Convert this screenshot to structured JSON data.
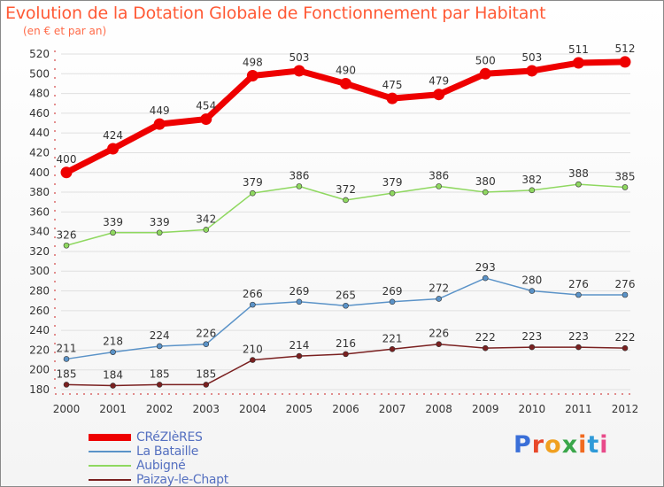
{
  "header": {
    "title": "Evolution de la Dotation Globale de Fonctionnement par Habitant",
    "subtitle": "(en € et par an)"
  },
  "logo": {
    "text": "Proxiti",
    "letter_colors": [
      "#3a6fd8",
      "#e8482a",
      "#f0a020",
      "#3aa64a",
      "#f06a20",
      "#2f9ad8",
      "#e84a8a"
    ]
  },
  "colors": {
    "title": "#ff5a36",
    "axis": "#cc2222",
    "grid": "#e0e0e0",
    "label": "#333333",
    "legend_text": "#5570c0"
  },
  "chart_data": {
    "type": "line",
    "title": "Evolution de la Dotation Globale de Fonctionnement par Habitant",
    "subtitle": "(en € et par an)",
    "xlabel": "",
    "ylabel": "",
    "x": [
      "2000",
      "2001",
      "2002",
      "2003",
      "2004",
      "2005",
      "2006",
      "2007",
      "2008",
      "2009",
      "2010",
      "2011",
      "2012"
    ],
    "ylim": [
      180,
      520
    ],
    "yticks": [
      180,
      200,
      220,
      240,
      260,
      280,
      300,
      320,
      340,
      360,
      380,
      400,
      420,
      440,
      460,
      480,
      500,
      520
    ],
    "grid": true,
    "legend_position": "bottom-left",
    "series": [
      {
        "name": "CRéZIèRES",
        "color": "#ee0000",
        "line_width": 7,
        "marker_radius": 6.5,
        "values": [
          400,
          424,
          449,
          454,
          498,
          503,
          490,
          475,
          479,
          500,
          503,
          511,
          512
        ]
      },
      {
        "name": "La Bataille",
        "color": "#5b93c8",
        "line_width": 1.5,
        "marker_radius": 3,
        "values": [
          211,
          218,
          224,
          226,
          266,
          269,
          265,
          269,
          272,
          293,
          280,
          276,
          276
        ]
      },
      {
        "name": "Aubigné",
        "color": "#8fd860",
        "line_width": 1.5,
        "marker_radius": 3,
        "values": [
          326,
          339,
          339,
          342,
          379,
          386,
          372,
          379,
          386,
          380,
          382,
          388,
          385
        ]
      },
      {
        "name": "Paizay-le-Chapt",
        "color": "#7a2020",
        "line_width": 1.5,
        "marker_radius": 3,
        "values": [
          185,
          184,
          185,
          185,
          210,
          214,
          216,
          221,
          226,
          222,
          223,
          223,
          222
        ]
      }
    ]
  }
}
